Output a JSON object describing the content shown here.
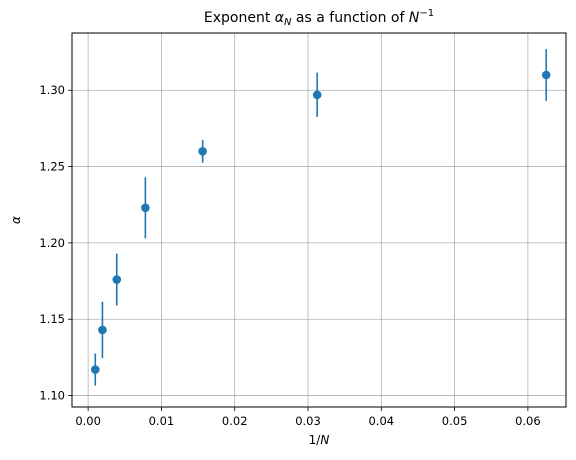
{
  "chart_data": {
    "type": "scatter",
    "title": "Exponent α_N as a function of N^−1",
    "title_parts": {
      "prefix": "Exponent ",
      "alpha": "α",
      "alpha_sub": "N",
      "middle": " as a function of ",
      "n": "N",
      "n_sup": "−1"
    },
    "xlabel": "1/N",
    "xlabel_parts": {
      "prefix": "1/",
      "var": "N"
    },
    "ylabel": "α",
    "xlim": [
      -0.0022,
      0.0652
    ],
    "ylim": [
      1.0925,
      1.3375
    ],
    "grid": true,
    "marker_color": "#1f77b4",
    "xticks": [
      {
        "value": 0.0,
        "label": "0.00"
      },
      {
        "value": 0.01,
        "label": "0.01"
      },
      {
        "value": 0.02,
        "label": "0.02"
      },
      {
        "value": 0.03,
        "label": "0.03"
      },
      {
        "value": 0.04,
        "label": "0.04"
      },
      {
        "value": 0.05,
        "label": "0.05"
      },
      {
        "value": 0.06,
        "label": "0.06"
      }
    ],
    "yticks": [
      {
        "value": 1.1,
        "label": "1.10"
      },
      {
        "value": 1.15,
        "label": "1.15"
      },
      {
        "value": 1.2,
        "label": "1.20"
      },
      {
        "value": 1.25,
        "label": "1.25"
      },
      {
        "value": 1.3,
        "label": "1.30"
      }
    ],
    "points": [
      {
        "x": 0.0009766,
        "y": 1.117,
        "yerr": 0.0105
      },
      {
        "x": 0.0019531,
        "y": 1.143,
        "yerr": 0.0185
      },
      {
        "x": 0.0039063,
        "y": 1.176,
        "yerr": 0.017
      },
      {
        "x": 0.0078125,
        "y": 1.223,
        "yerr": 0.02
      },
      {
        "x": 0.015625,
        "y": 1.26,
        "yerr": 0.0075
      },
      {
        "x": 0.03125,
        "y": 1.297,
        "yerr": 0.0145
      },
      {
        "x": 0.0625,
        "y": 1.31,
        "yerr": 0.017
      }
    ]
  }
}
